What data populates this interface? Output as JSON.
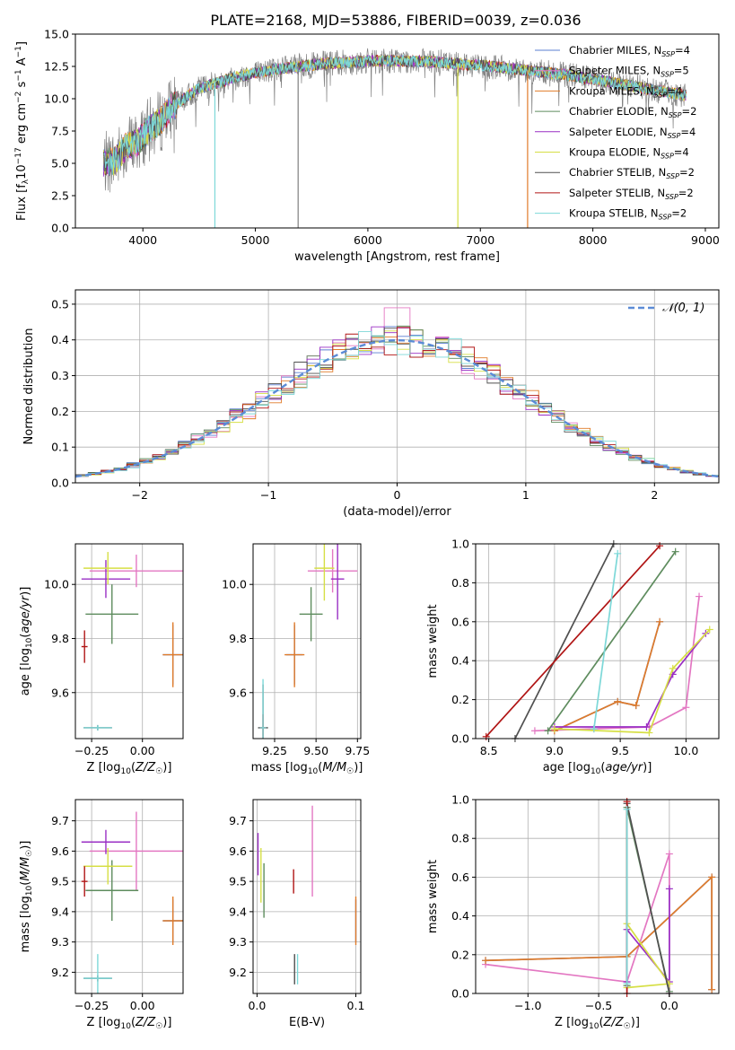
{
  "figure": {
    "title": "PLATE=2168, MJD=53886, FIBERID=0039, z=0.036"
  },
  "colors": {
    "chabrier_miles": "#5b7fd1",
    "salpeter_miles": "#e377c2",
    "kroupa_miles": "#e07b29",
    "chabrier_elodie": "#5e8c5e",
    "salpeter_elodie": "#9a2fc4",
    "kroupa_elodie": "#d6df45",
    "chabrier_stelib": "#505050",
    "salpeter_stelib": "#b01414",
    "kroupa_stelib": "#7dd8d8",
    "data": "#808080",
    "grid": "#b0b0b0",
    "normal": "#5b8bd6"
  },
  "chart_data": [
    {
      "type": "line",
      "id": "spectrum",
      "xlabel": "wavelength [Angstrom, rest frame]",
      "ylabel": "Flux [f_λ 10^-17 erg cm^-2 s^-1 A^-1]",
      "xlim": [
        3400,
        9120
      ],
      "ylim": [
        0,
        15
      ],
      "xticks": [
        4000,
        5000,
        6000,
        7000,
        8000,
        9000
      ],
      "yticks": [
        0.0,
        2.5,
        5.0,
        7.5,
        10.0,
        12.5,
        15.0
      ],
      "legend_position": "top-right",
      "continuum": {
        "x": [
          3650,
          3750,
          3850,
          3950,
          4050,
          4150,
          4250,
          4350,
          4500,
          4650,
          4800,
          5000,
          5200,
          5400,
          5600,
          5800,
          6000,
          6200,
          6400,
          6600,
          6800,
          7000,
          7200,
          7400,
          7600,
          7800,
          8000,
          8200,
          8400,
          8600,
          8800
        ],
        "y": [
          5.0,
          5.2,
          6.3,
          6.6,
          7.6,
          8.2,
          9.3,
          9.9,
          10.8,
          11.2,
          11.6,
          12.0,
          12.3,
          12.5,
          12.7,
          12.8,
          12.9,
          12.95,
          12.9,
          12.85,
          12.7,
          12.6,
          12.4,
          12.2,
          12.0,
          11.8,
          11.5,
          11.2,
          10.9,
          10.6,
          10.3
        ]
      },
      "series": [
        {
          "name": "Chabrier MILES, N_SSP=4",
          "label_main": "Chabrier MILES, N",
          "label_sub": "SSP",
          "label_tail": "=4",
          "color_key": "chabrier_miles"
        },
        {
          "name": "Salpeter MILES, N_SSP=5",
          "label_main": "Salpeter MILES, N",
          "label_sub": "SSP",
          "label_tail": "=5",
          "color_key": "salpeter_miles"
        },
        {
          "name": "Kroupa MILES, N_SSP=4",
          "label_main": "Kroupa MILES, N",
          "label_sub": "SSP",
          "label_tail": "=4",
          "color_key": "kroupa_miles"
        },
        {
          "name": "Chabrier ELODIE, N_SSP=2",
          "label_main": "Chabrier ELODIE, N",
          "label_sub": "SSP",
          "label_tail": "=2",
          "color_key": "chabrier_elodie"
        },
        {
          "name": "Salpeter ELODIE, N_SSP=4",
          "label_main": "Salpeter ELODIE, N",
          "label_sub": "SSP",
          "label_tail": "=4",
          "color_key": "salpeter_elodie"
        },
        {
          "name": "Kroupa ELODIE, N_SSP=4",
          "label_main": "Kroupa ELODIE, N",
          "label_sub": "SSP",
          "label_tail": "=4",
          "color_key": "kroupa_elodie"
        },
        {
          "name": "Chabrier STELIB, N_SSP=2",
          "label_main": "Chabrier STELIB, N",
          "label_sub": "SSP",
          "label_tail": "=2",
          "color_key": "chabrier_stelib"
        },
        {
          "name": "Salpeter STELIB, N_SSP=2",
          "label_main": "Salpeter STELIB, N",
          "label_sub": "SSP",
          "label_tail": "=2",
          "color_key": "salpeter_stelib"
        },
        {
          "name": "Kroupa STELIB, N_SSP=2",
          "label_main": "Kroupa STELIB, N",
          "label_sub": "SSP",
          "label_tail": "=2",
          "color_key": "kroupa_stelib"
        }
      ],
      "dropouts": [
        {
          "color_key": "kroupa_stelib",
          "x": 4640
        },
        {
          "color_key": "data",
          "x": 5380
        },
        {
          "color_key": "kroupa_elodie",
          "x": 6800
        },
        {
          "color_key": "kroupa_miles",
          "x": 7420
        }
      ]
    },
    {
      "type": "histogram",
      "id": "residuals",
      "xlabel": "(data-model)/error",
      "ylabel": "Normed distribution",
      "xlim": [
        -2.5,
        2.5
      ],
      "ylim": [
        0,
        0.54
      ],
      "xticks": [
        -2,
        -1,
        0,
        1,
        2
      ],
      "yticks": [
        0.0,
        0.1,
        0.2,
        0.3,
        0.4,
        0.5
      ],
      "bin_width": 0.1,
      "bin_start": -2.5,
      "legend": {
        "label": "𝒩(0, 1)",
        "position": "top-right",
        "style": "dashed"
      },
      "normal_mean": 0,
      "normal_sigma": 1
    },
    {
      "type": "scatter",
      "id": "age_vs_Z",
      "xlabel": "Z [log10(Z/Z☉)]",
      "ylabel": "age [log10(age/yr)]",
      "xlim": [
        -0.33,
        0.2
      ],
      "ylim": [
        9.43,
        10.15
      ],
      "xticks": [
        -0.25,
        0.0
      ],
      "yticks": [
        9.6,
        9.8,
        10.0
      ],
      "points": [
        {
          "color_key": "chabrier_miles",
          "x": 0.15,
          "y": 9.74,
          "xerr": 0.05,
          "yerr": 0.11
        },
        {
          "color_key": "salpeter_miles",
          "x": -0.03,
          "y": 10.05,
          "xerr": 0.23,
          "yerr": 0.06
        },
        {
          "color_key": "kroupa_miles",
          "x": 0.15,
          "y": 9.74,
          "xerr": 0.05,
          "yerr": 0.12
        },
        {
          "color_key": "chabrier_elodie",
          "x": -0.15,
          "y": 9.89,
          "xerr": 0.13,
          "yerr": 0.11
        },
        {
          "color_key": "salpeter_elodie",
          "x": -0.18,
          "y": 10.02,
          "xerr": 0.12,
          "yerr": 0.07
        },
        {
          "color_key": "kroupa_elodie",
          "x": -0.17,
          "y": 10.06,
          "xerr": 0.12,
          "yerr": 0.06
        },
        {
          "color_key": "chabrier_stelib",
          "x": -0.22,
          "y": 9.47,
          "xerr": 0.07,
          "yerr": 0.01
        },
        {
          "color_key": "salpeter_stelib",
          "x": -0.285,
          "y": 9.77,
          "xerr": 0.015,
          "yerr": 0.06
        },
        {
          "color_key": "kroupa_stelib",
          "x": -0.22,
          "y": 9.47,
          "xerr": 0.07,
          "yerr": 0.01
        }
      ]
    },
    {
      "type": "scatter",
      "id": "age_vs_mass",
      "xlabel": "mass [log10(M/M☉)]",
      "ylabel": "",
      "xlim": [
        9.12,
        9.77
      ],
      "ylim": [
        9.43,
        10.15
      ],
      "xticks": [
        9.25,
        9.5,
        9.75
      ],
      "yticks": [
        9.6,
        9.8,
        10.0
      ],
      "points": [
        {
          "color_key": "chabrier_miles",
          "x": 9.37,
          "y": 9.74,
          "xerr": 0.05,
          "yerr": 0.11
        },
        {
          "color_key": "salpeter_miles",
          "x": 9.6,
          "y": 10.05,
          "xerr": 0.15,
          "yerr": 0.08
        },
        {
          "color_key": "kroupa_miles",
          "x": 9.37,
          "y": 9.74,
          "xerr": 0.06,
          "yerr": 0.12
        },
        {
          "color_key": "chabrier_elodie",
          "x": 9.47,
          "y": 9.89,
          "xerr": 0.07,
          "yerr": 0.1
        },
        {
          "color_key": "salpeter_elodie",
          "x": 9.63,
          "y": 10.02,
          "xerr": 0.04,
          "yerr": 0.15
        },
        {
          "color_key": "kroupa_elodie",
          "x": 9.55,
          "y": 10.06,
          "xerr": 0.06,
          "yerr": 0.12
        },
        {
          "color_key": "chabrier_stelib",
          "x": 9.18,
          "y": 9.47,
          "xerr": 0.03,
          "yerr": 0.16
        },
        {
          "color_key": "salpeter_stelib",
          "x": 9.18,
          "y": 9.47,
          "xerr": 0.02,
          "yerr": 0.05
        },
        {
          "color_key": "kroupa_stelib",
          "x": 9.18,
          "y": 9.47,
          "xerr": 0.02,
          "yerr": 0.18
        }
      ]
    },
    {
      "type": "line",
      "id": "mass_weight_vs_age",
      "xlabel": "age [log10(age/yr)]",
      "ylabel": "mass weight",
      "xlim": [
        8.4,
        10.25
      ],
      "ylim": [
        0,
        1
      ],
      "xticks": [
        8.5,
        9.0,
        9.5,
        10.0
      ],
      "yticks": [
        0.0,
        0.2,
        0.4,
        0.6,
        0.8,
        1.0
      ],
      "series": [
        {
          "color_key": "chabrier_miles",
          "x": [
            9.0,
            9.48,
            9.62,
            9.8
          ],
          "y": [
            0.04,
            0.19,
            0.17,
            0.6
          ]
        },
        {
          "color_key": "salpeter_miles",
          "x": [
            8.85,
            9.3,
            9.72,
            10.0,
            10.1
          ],
          "y": [
            0.04,
            0.05,
            0.06,
            0.16,
            0.73
          ]
        },
        {
          "color_key": "kroupa_miles",
          "x": [
            9.0,
            9.48,
            9.62,
            9.8
          ],
          "y": [
            0.04,
            0.19,
            0.17,
            0.6
          ]
        },
        {
          "color_key": "chabrier_elodie",
          "x": [
            8.95,
            9.92
          ],
          "y": [
            0.04,
            0.96
          ]
        },
        {
          "color_key": "salpeter_elodie",
          "x": [
            9.0,
            9.7,
            9.9,
            10.15
          ],
          "y": [
            0.06,
            0.06,
            0.33,
            0.54
          ]
        },
        {
          "color_key": "kroupa_elodie",
          "x": [
            9.0,
            9.72,
            9.9,
            10.18
          ],
          "y": [
            0.05,
            0.03,
            0.36,
            0.56
          ]
        },
        {
          "color_key": "chabrier_stelib",
          "x": [
            8.7,
            9.45
          ],
          "y": [
            0.0,
            1.0
          ]
        },
        {
          "color_key": "salpeter_stelib",
          "x": [
            8.48,
            9.8
          ],
          "y": [
            0.01,
            0.99
          ]
        },
        {
          "color_key": "kroupa_stelib",
          "x": [
            9.3,
            9.48
          ],
          "y": [
            0.05,
            0.95
          ]
        }
      ]
    },
    {
      "type": "scatter",
      "id": "mass_vs_Z",
      "xlabel": "Z [log10(Z/Z☉)]",
      "ylabel": "mass [log10(M/M☉)]",
      "xlim": [
        -0.33,
        0.2
      ],
      "ylim": [
        9.13,
        9.77
      ],
      "xticks": [
        -0.25,
        0.0
      ],
      "yticks": [
        9.2,
        9.3,
        9.4,
        9.5,
        9.6,
        9.7
      ],
      "points": [
        {
          "color_key": "chabrier_miles",
          "x": 0.15,
          "y": 9.37,
          "xerr": 0.05,
          "yerr": 0.07
        },
        {
          "color_key": "salpeter_miles",
          "x": -0.03,
          "y": 9.6,
          "xerr": 0.23,
          "yerr": 0.13
        },
        {
          "color_key": "kroupa_miles",
          "x": 0.15,
          "y": 9.37,
          "xerr": 0.05,
          "yerr": 0.08
        },
        {
          "color_key": "chabrier_elodie",
          "x": -0.15,
          "y": 9.47,
          "xerr": 0.13,
          "yerr": 0.1
        },
        {
          "color_key": "salpeter_elodie",
          "x": -0.18,
          "y": 9.63,
          "xerr": 0.12,
          "yerr": 0.04
        },
        {
          "color_key": "kroupa_elodie",
          "x": -0.17,
          "y": 9.55,
          "xerr": 0.12,
          "yerr": 0.06
        },
        {
          "color_key": "chabrier_stelib",
          "x": -0.22,
          "y": 9.18,
          "xerr": 0.07,
          "yerr": 0.01
        },
        {
          "color_key": "salpeter_stelib",
          "x": -0.285,
          "y": 9.5,
          "xerr": 0.015,
          "yerr": 0.05
        },
        {
          "color_key": "kroupa_stelib",
          "x": -0.22,
          "y": 9.18,
          "xerr": 0.07,
          "yerr": 0.08
        }
      ]
    },
    {
      "type": "scatter",
      "id": "mass_vs_EBV",
      "xlabel": "E(B-V)",
      "ylabel": "",
      "xlim": [
        -0.004,
        0.105
      ],
      "ylim": [
        9.13,
        9.77
      ],
      "xticks": [
        0.0,
        0.1
      ],
      "yticks": [
        9.2,
        9.3,
        9.4,
        9.5,
        9.6,
        9.7
      ],
      "points": [
        {
          "color_key": "chabrier_miles",
          "x": 0.1,
          "y": 9.37,
          "xerr": 0.0,
          "yerr": 0.07
        },
        {
          "color_key": "salpeter_miles",
          "x": 0.056,
          "y": 9.6,
          "xerr": 0.0,
          "yerr": 0.15
        },
        {
          "color_key": "kroupa_miles",
          "x": 0.1,
          "y": 9.37,
          "xerr": 0.0,
          "yerr": 0.08
        },
        {
          "color_key": "chabrier_elodie",
          "x": 0.007,
          "y": 9.47,
          "xerr": 0.0,
          "yerr": 0.09
        },
        {
          "color_key": "salpeter_elodie",
          "x": 0.001,
          "y": 9.59,
          "xerr": 0.0,
          "yerr": 0.07
        },
        {
          "color_key": "kroupa_elodie",
          "x": 0.004,
          "y": 9.52,
          "xerr": 0.0,
          "yerr": 0.09
        },
        {
          "color_key": "chabrier_stelib",
          "x": 0.038,
          "y": 9.21,
          "xerr": 0.0,
          "yerr": 0.05
        },
        {
          "color_key": "salpeter_stelib",
          "x": 0.037,
          "y": 9.5,
          "xerr": 0.0,
          "yerr": 0.04
        },
        {
          "color_key": "kroupa_stelib",
          "x": 0.041,
          "y": 9.21,
          "xerr": 0.0,
          "yerr": 0.05
        }
      ]
    },
    {
      "type": "line",
      "id": "mass_weight_vs_Z",
      "xlabel": "Z [log10(Z/Z☉)]",
      "ylabel": "mass weight",
      "xlim": [
        -1.37,
        0.35
      ],
      "ylim": [
        0,
        1
      ],
      "xticks": [
        -1.0,
        -0.5,
        0.0
      ],
      "yticks": [
        0.0,
        0.2,
        0.4,
        0.6,
        0.8,
        1.0
      ],
      "series": [
        {
          "color_key": "chabrier_miles",
          "x": [
            -1.3,
            -0.3,
            0.3,
            0.3
          ],
          "y": [
            0.17,
            0.19,
            0.6,
            0.02
          ]
        },
        {
          "color_key": "salpeter_miles",
          "x": [
            -1.3,
            -0.3,
            0.0,
            0.0
          ],
          "y": [
            0.15,
            0.06,
            0.72,
            0.0
          ]
        },
        {
          "color_key": "kroupa_miles",
          "x": [
            -1.3,
            -0.3,
            0.3,
            0.3
          ],
          "y": [
            0.17,
            0.19,
            0.6,
            0.02
          ]
        },
        {
          "color_key": "chabrier_elodie",
          "x": [
            -0.3,
            -0.3,
            0.0
          ],
          "y": [
            0.04,
            0.96,
            0.01
          ]
        },
        {
          "color_key": "salpeter_elodie",
          "x": [
            -0.3,
            -0.3,
            0.0,
            0.0
          ],
          "y": [
            0.06,
            0.33,
            0.06,
            0.54
          ]
        },
        {
          "color_key": "kroupa_elodie",
          "x": [
            -0.3,
            0.0,
            -0.3
          ],
          "y": [
            0.03,
            0.05,
            0.36
          ]
        },
        {
          "color_key": "chabrier_stelib",
          "x": [
            -0.3,
            0.0
          ],
          "y": [
            0.98,
            0.0
          ]
        },
        {
          "color_key": "salpeter_stelib",
          "x": [
            -0.3,
            -0.3
          ],
          "y": [
            0.0,
            0.99
          ]
        },
        {
          "color_key": "kroupa_stelib",
          "x": [
            -0.3,
            -0.3
          ],
          "y": [
            0.05,
            0.95
          ]
        }
      ]
    }
  ]
}
